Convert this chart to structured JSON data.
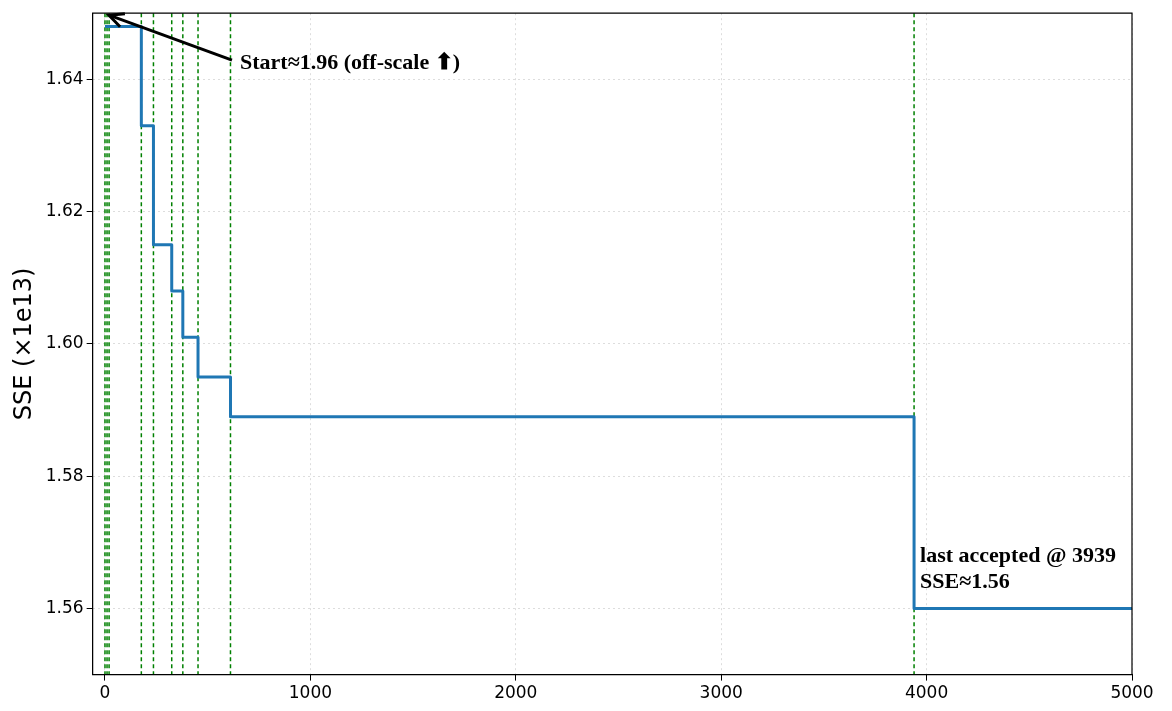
{
  "chart_data": {
    "type": "step",
    "ylabel": "SSE (×1e13)",
    "x": [
      0,
      177,
      236,
      325,
      379,
      453,
      611,
      3939,
      5000
    ],
    "series": [
      {
        "color": "#1f77b4",
        "values": [
          1.648,
          1.633,
          1.615,
          1.608,
          1.601,
          1.595,
          1.589,
          1.56,
          1.56
        ]
      }
    ],
    "xlim": [
      -60,
      5000
    ],
    "xticks": [
      0,
      1000,
      2000,
      3000,
      4000,
      5000
    ],
    "ylim": [
      1.55,
      1.65
    ],
    "yticks": [
      {
        "value": 1.56,
        "label": "1.56"
      },
      {
        "value": 1.58,
        "label": "1.58"
      },
      {
        "value": 1.6,
        "label": "1.60"
      },
      {
        "value": 1.62,
        "label": "1.62"
      },
      {
        "value": 1.64,
        "label": "1.64"
      }
    ],
    "grid": true,
    "legend": false,
    "ref_lines": [
      {
        "axis": "x",
        "value": 0,
        "color": "#008000",
        "line_style": "dashed"
      },
      {
        "axis": "x",
        "value": 10,
        "color": "#008000",
        "line_style": "dashed"
      },
      {
        "axis": "x",
        "value": 20,
        "color": "#008000",
        "line_style": "dashed"
      },
      {
        "axis": "x",
        "value": 177,
        "color": "#008000",
        "line_style": "dashed"
      },
      {
        "axis": "x",
        "value": 236,
        "color": "#008000",
        "line_style": "dashed"
      },
      {
        "axis": "x",
        "value": 325,
        "color": "#008000",
        "line_style": "dashed"
      },
      {
        "axis": "x",
        "value": 379,
        "color": "#008000",
        "line_style": "dashed"
      },
      {
        "axis": "x",
        "value": 453,
        "color": "#008000",
        "line_style": "dashed"
      },
      {
        "axis": "x",
        "value": 611,
        "color": "#008000",
        "line_style": "dashed"
      },
      {
        "axis": "x",
        "value": 3939,
        "color": "#008000",
        "line_style": "dashed"
      }
    ],
    "annotations": [
      {
        "text": "Start≈1.96 (off-scale ⬆)",
        "x": 0,
        "y": 1.65
      },
      {
        "text": "last accepted @ 3939\nSSE≈1.56",
        "x": 3939,
        "y": 1.56
      }
    ]
  }
}
